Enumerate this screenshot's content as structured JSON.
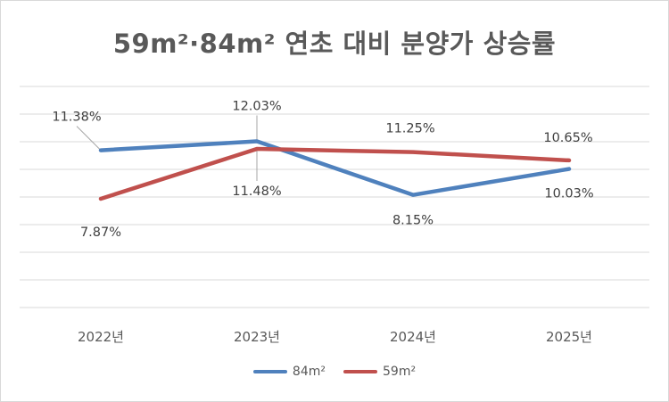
{
  "chart_data": {
    "type": "line",
    "title": "59m²·84m² 연초 대비 분양가 상승률",
    "categories": [
      "2022년",
      "2023년",
      "2024년",
      "2025년"
    ],
    "ylim": [
      0,
      16
    ],
    "grid": true,
    "legend_position": "bottom",
    "series": [
      {
        "name": "84m²",
        "color": "#4f81bd",
        "values": [
          11.38,
          12.03,
          8.15,
          10.03
        ],
        "labels": [
          "11.38%",
          "12.03%",
          "8.15%",
          "10.03%"
        ]
      },
      {
        "name": "59m²",
        "color": "#c0504d",
        "values": [
          7.87,
          11.48,
          11.25,
          10.65
        ],
        "labels": [
          "7.87%",
          "11.48%",
          "11.25%",
          "10.65%"
        ]
      }
    ]
  }
}
